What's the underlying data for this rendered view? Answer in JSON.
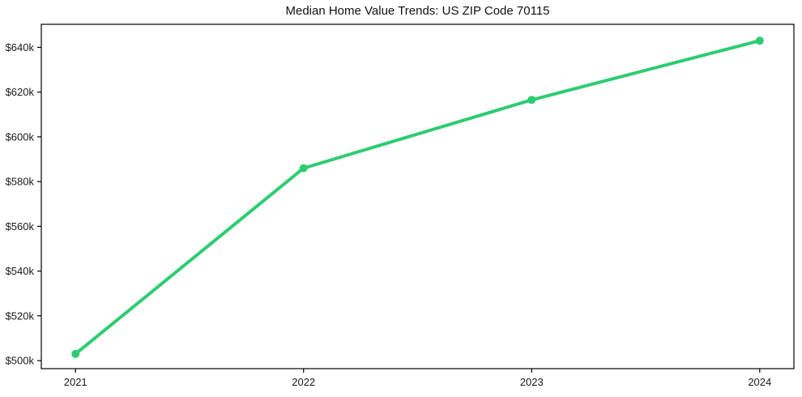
{
  "chart_data": {
    "type": "line",
    "title": "Median Home Value Trends: US ZIP Code 70115",
    "x": [
      2021,
      2022,
      2023,
      2024
    ],
    "x_tick_labels": [
      "2021",
      "2022",
      "2023",
      "2024"
    ],
    "values": [
      503000,
      586000,
      616500,
      643000
    ],
    "yticks": [
      500000,
      520000,
      540000,
      560000,
      580000,
      600000,
      620000,
      640000
    ],
    "ytick_labels": [
      "$500k",
      "$520k",
      "$540k",
      "$560k",
      "$580k",
      "$600k",
      "$620k",
      "$640k"
    ],
    "xlim": [
      2020.85,
      2024.15
    ],
    "ylim": [
      496400,
      650300
    ],
    "xlabel": "",
    "ylabel": "",
    "grid": false,
    "legend_position": "none",
    "line_color": "#2ecc71",
    "spine_color": "#000000",
    "tick_label_color": "#1a1a1a",
    "background_color": "#ffffff",
    "line_width": 4,
    "marker": "circle",
    "marker_radius": 5
  }
}
